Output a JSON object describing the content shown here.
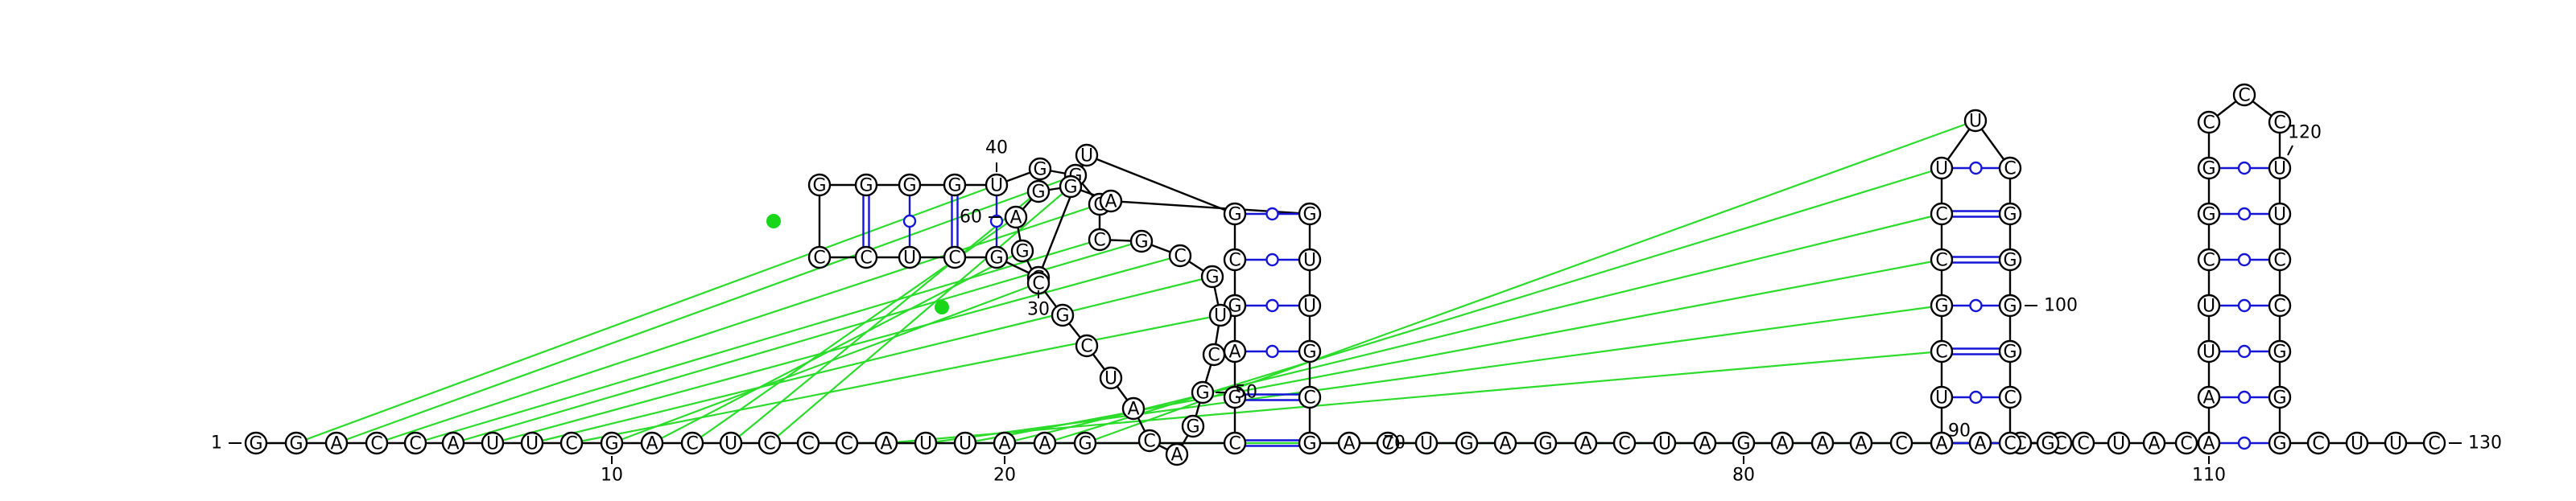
{
  "sequence": "GGACCAUUCGACUCCCAUUAAGCGAGCGUGGCUCCGGGGUGGCCGCGUCGGACAUCGCGAGGAGUUGCGACUGAGACUAGAAACGACCAUCGCCUUCGGGGCCGCUACAAAUUCGGCCCUUCCGGGCUUC",
  "length": 130,
  "position_labels": [
    {
      "n": 1,
      "text": "1"
    },
    {
      "n": 10,
      "text": "10"
    },
    {
      "n": 20,
      "text": "20"
    },
    {
      "n": 30,
      "text": "30"
    },
    {
      "n": 40,
      "text": "40"
    },
    {
      "n": 50,
      "text": "50"
    },
    {
      "n": 60,
      "text": "60"
    },
    {
      "n": 70,
      "text": "70"
    },
    {
      "n": 80,
      "text": "80"
    },
    {
      "n": 90,
      "text": "90"
    },
    {
      "n": 100,
      "text": "100"
    },
    {
      "n": 110,
      "text": "110"
    },
    {
      "n": 120,
      "text": "120"
    },
    {
      "n": 130,
      "text": "130"
    }
  ],
  "base_pairs": [
    [
      23,
      69
    ],
    [
      24,
      68
    ],
    [
      25,
      67
    ],
    [
      26,
      66
    ],
    [
      27,
      65
    ],
    [
      28,
      64
    ],
    [
      31,
      40
    ],
    [
      32,
      39
    ],
    [
      33,
      38
    ],
    [
      34,
      37
    ],
    [
      89,
      103
    ],
    [
      90,
      102
    ],
    [
      91,
      101
    ],
    [
      92,
      100
    ],
    [
      93,
      99
    ],
    [
      94,
      98
    ],
    [
      95,
      97
    ],
    [
      110,
      126
    ],
    [
      111,
      125
    ],
    [
      112,
      124
    ],
    [
      113,
      123
    ],
    [
      114,
      122
    ],
    [
      115,
      121
    ],
    [
      116,
      120
    ]
  ],
  "tertiary_links": [
    [
      2,
      41
    ],
    [
      3,
      42
    ],
    [
      4,
      43
    ],
    [
      5,
      44
    ],
    [
      6,
      45
    ],
    [
      7,
      46
    ],
    [
      8,
      47
    ],
    [
      9,
      48
    ],
    [
      10,
      58
    ],
    [
      11,
      59
    ],
    [
      12,
      60
    ],
    [
      13,
      61
    ],
    [
      14,
      62
    ],
    [
      15,
      87
    ],
    [
      16,
      88
    ],
    [
      17,
      91
    ],
    [
      18,
      92
    ],
    [
      19,
      93
    ],
    [
      20,
      94
    ],
    [
      21,
      95
    ],
    [
      22,
      96
    ]
  ],
  "colors": {
    "backbone": "#000000",
    "base_pair": "#1515d8",
    "tertiary": "#2bdc2b",
    "highlight": "#19d619"
  }
}
